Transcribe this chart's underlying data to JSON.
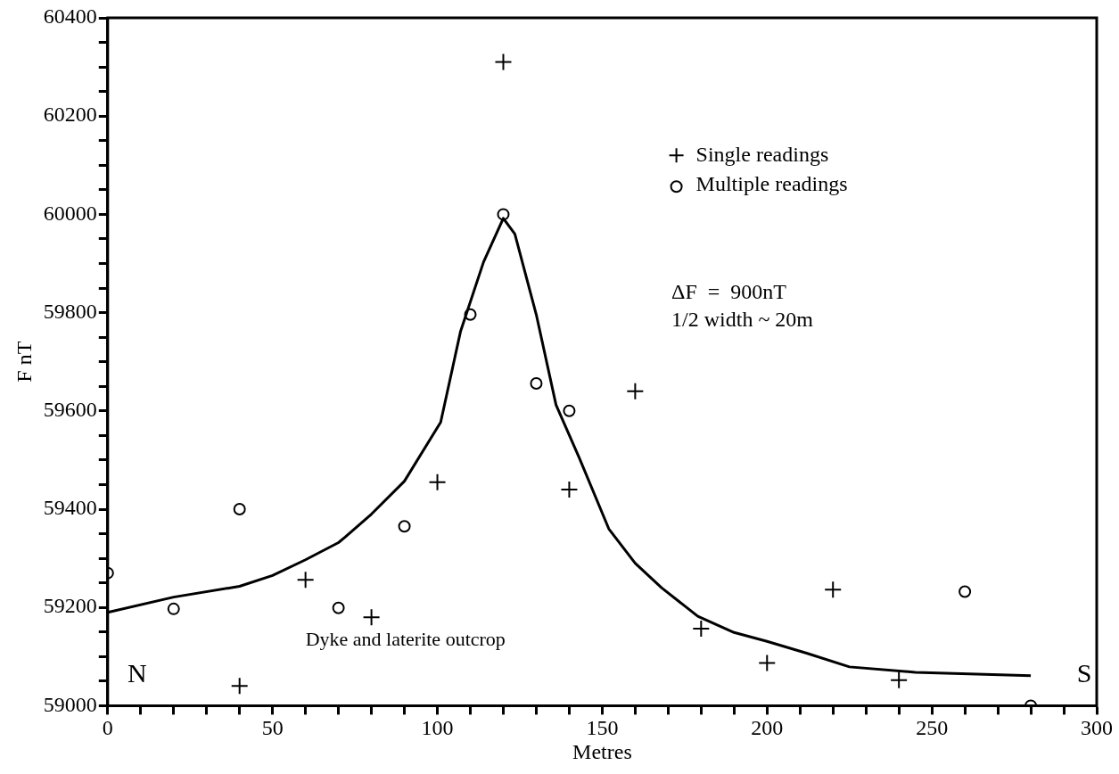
{
  "chart_data": {
    "type": "scatter",
    "xlabel": "Metres",
    "ylabel": "F nT",
    "xlim": [
      0,
      300
    ],
    "ylim": [
      59000,
      60400
    ],
    "xticks": [
      0,
      {
        "value": 10,
        "label": null
      },
      {
        "value": 20,
        "label": null
      },
      {
        "value": 30,
        "label": null
      },
      {
        "value": 40,
        "label": null
      },
      50,
      {
        "value": 60,
        "label": null
      },
      {
        "value": 70,
        "label": null
      },
      {
        "value": 80,
        "label": null
      },
      {
        "value": 90,
        "label": null
      },
      100,
      {
        "value": 110,
        "label": null
      },
      {
        "value": 120,
        "label": null
      },
      {
        "value": 130,
        "label": null
      },
      {
        "value": 140,
        "label": null
      },
      150,
      {
        "value": 160,
        "label": null
      },
      {
        "value": 170,
        "label": null
      },
      {
        "value": 180,
        "label": null
      },
      {
        "value": 190,
        "label": null
      },
      200,
      {
        "value": 210,
        "label": null
      },
      {
        "value": 220,
        "label": null
      },
      {
        "value": 230,
        "label": null
      },
      {
        "value": 240,
        "label": null
      },
      250,
      {
        "value": 260,
        "label": null
      },
      {
        "value": 270,
        "label": null
      },
      {
        "value": 280,
        "label": null
      },
      {
        "value": 290,
        "label": null
      },
      300
    ],
    "yticks": [
      59000,
      {
        "value": 59050,
        "label": null
      },
      {
        "value": 59100,
        "label": null
      },
      {
        "value": 59150,
        "label": null
      },
      59200,
      {
        "value": 59250,
        "label": null
      },
      {
        "value": 59300,
        "label": null
      },
      {
        "value": 59350,
        "label": null
      },
      59400,
      {
        "value": 59450,
        "label": null
      },
      {
        "value": 59500,
        "label": null
      },
      {
        "value": 59550,
        "label": null
      },
      59600,
      {
        "value": 59650,
        "label": null
      },
      {
        "value": 59700,
        "label": null
      },
      {
        "value": 59750,
        "label": null
      },
      59800,
      {
        "value": 59850,
        "label": null
      },
      {
        "value": 59900,
        "label": null
      },
      {
        "value": 59950,
        "label": null
      },
      60000,
      {
        "value": 60050,
        "label": null
      },
      {
        "value": 60100,
        "label": null
      },
      {
        "value": 60150,
        "label": null
      },
      60200,
      {
        "value": 60250,
        "label": null
      },
      {
        "value": 60300,
        "label": null
      },
      {
        "value": 60350,
        "label": null
      },
      60400
    ],
    "grid": false,
    "legend": "top right",
    "series": [
      {
        "type": "line",
        "color": "#000000",
        "marker": "none",
        "line_style": "solid",
        "x": [
          0,
          20,
          40,
          50,
          60,
          70,
          72,
          80,
          90,
          101,
          107,
          114,
          120,
          123.5,
          130,
          136,
          143,
          152,
          160,
          168,
          179,
          190,
          200,
          212,
          225,
          245,
          280
        ],
        "values": [
          59190,
          59221,
          59243,
          59265,
          59297,
          59332,
          59343,
          59390,
          59457,
          59577,
          59761,
          59903,
          59992,
          59960,
          59796,
          59612,
          59505,
          59360,
          59290,
          59240,
          59182,
          59149,
          59131,
          59107,
          59079,
          59068,
          59061
        ]
      },
      {
        "name": "Single readings",
        "color": "#000000",
        "marker": "cross",
        "x": [
          40,
          60,
          80,
          100,
          120,
          140,
          160,
          180,
          200,
          220,
          240
        ],
        "values": [
          59040,
          59256,
          59180,
          59455,
          60310,
          59440,
          59640,
          59157,
          59087,
          59236,
          59052
        ]
      },
      {
        "name": "Multiple readings",
        "color": "#000000",
        "marker": "circle",
        "x": [
          0,
          20,
          40,
          70,
          90,
          110,
          120,
          130,
          140,
          260,
          280
        ],
        "values": [
          59270,
          59197,
          59400,
          59199,
          59365,
          59796,
          60000,
          59656,
          59600,
          59232,
          59000
        ]
      }
    ],
    "annotations": [
      "N",
      "S",
      "Dyke and laterite outcrop",
      "ΔF  =  900nT",
      "1/2 width ~ 20m"
    ]
  }
}
